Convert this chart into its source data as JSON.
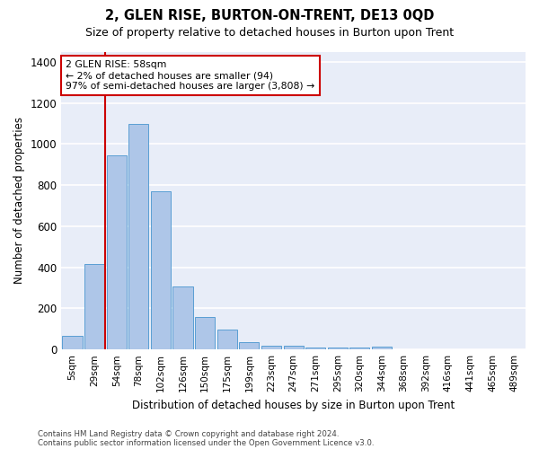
{
  "title": "2, GLEN RISE, BURTON-ON-TRENT, DE13 0QD",
  "subtitle": "Size of property relative to detached houses in Burton upon Trent",
  "xlabel": "Distribution of detached houses by size in Burton upon Trent",
  "ylabel": "Number of detached properties",
  "categories": [
    "5sqm",
    "29sqm",
    "54sqm",
    "78sqm",
    "102sqm",
    "126sqm",
    "150sqm",
    "175sqm",
    "199sqm",
    "223sqm",
    "247sqm",
    "271sqm",
    "295sqm",
    "320sqm",
    "344sqm",
    "368sqm",
    "392sqm",
    "416sqm",
    "441sqm",
    "465sqm",
    "489sqm"
  ],
  "values": [
    65,
    415,
    945,
    1100,
    770,
    305,
    160,
    95,
    35,
    18,
    18,
    10,
    10,
    10,
    12,
    0,
    0,
    0,
    0,
    0,
    0
  ],
  "bar_color": "#aec6e8",
  "bar_edge_color": "#5a9fd4",
  "marker_label_line1": "2 GLEN RISE: 58sqm",
  "marker_label_line2": "← 2% of detached houses are smaller (94)",
  "marker_label_line3": "97% of semi-detached houses are larger (3,808) →",
  "vline_color": "#cc0000",
  "box_color": "#cc0000",
  "ylim": [
    0,
    1450
  ],
  "footnote1": "Contains HM Land Registry data © Crown copyright and database right 2024.",
  "footnote2": "Contains public sector information licensed under the Open Government Licence v3.0.",
  "background_color": "#e8edf8"
}
